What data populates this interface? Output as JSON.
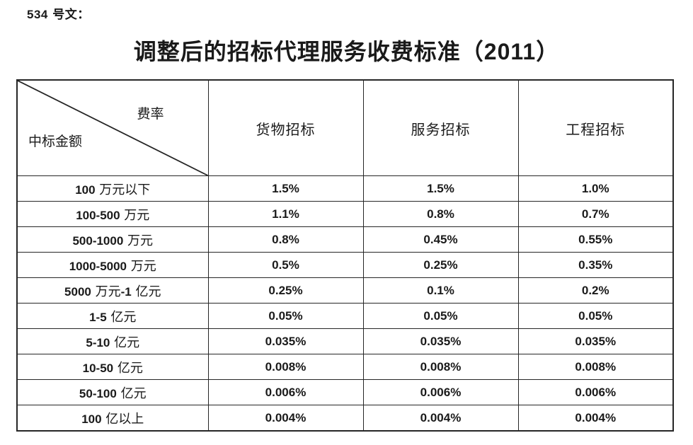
{
  "document": {
    "doc_number": "534 号文：",
    "title": "调整后的招标代理服务收费标准（2011）"
  },
  "table": {
    "corner": {
      "rate_label": "费率",
      "amount_label": "中标金额"
    },
    "column_headers": [
      "货物招标",
      "服务招标",
      "工程招标"
    ],
    "rows": [
      {
        "label": "100 万元以下",
        "values": [
          "1.5%",
          "1.5%",
          "1.0%"
        ]
      },
      {
        "label": "100-500 万元",
        "values": [
          "1.1%",
          "0.8%",
          "0.7%"
        ]
      },
      {
        "label": "500-1000 万元",
        "values": [
          "0.8%",
          "0.45%",
          "0.55%"
        ]
      },
      {
        "label": "1000-5000 万元",
        "values": [
          "0.5%",
          "0.25%",
          "0.35%"
        ]
      },
      {
        "label": "5000 万元-1 亿元",
        "values": [
          "0.25%",
          "0.1%",
          "0.2%"
        ]
      },
      {
        "label": "1-5 亿元",
        "values": [
          "0.05%",
          "0.05%",
          "0.05%"
        ]
      },
      {
        "label": "5-10 亿元",
        "values": [
          "0.035%",
          "0.035%",
          "0.035%"
        ]
      },
      {
        "label": "10-50 亿元",
        "values": [
          "0.008%",
          "0.008%",
          "0.008%"
        ]
      },
      {
        "label": "50-100 亿元",
        "values": [
          "0.006%",
          "0.006%",
          "0.006%"
        ]
      },
      {
        "label": "100 亿以上",
        "values": [
          "0.004%",
          "0.004%",
          "0.004%"
        ]
      }
    ]
  }
}
